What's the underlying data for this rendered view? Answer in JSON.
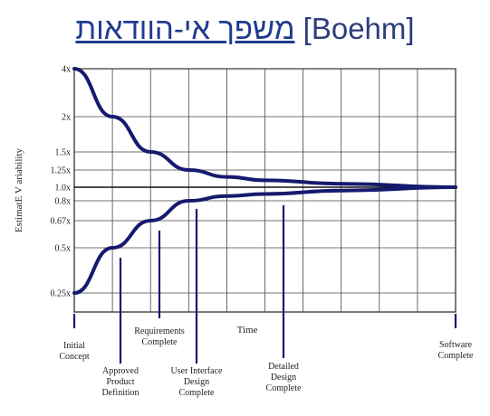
{
  "header": {
    "hebrew": "משפך אי-הוודאות",
    "latin": "[Boehm]"
  },
  "chart_data": {
    "type": "line",
    "title": "משפך אי-הוודאות [Boehm]",
    "xlabel": "Time",
    "ylabel": "EstimatE V ariability",
    "y_ticks": [
      {
        "label": "4x",
        "value": 4.0
      },
      {
        "label": "2x",
        "value": 2.0
      },
      {
        "label": "1.5x",
        "value": 1.5
      },
      {
        "label": "1.25x",
        "value": 1.25
      },
      {
        "label": "1.0x",
        "value": 1.0
      },
      {
        "label": "0.8x",
        "value": 0.8
      },
      {
        "label": "0.67x",
        "value": 0.67
      },
      {
        "label": "0.5x",
        "value": 0.5
      },
      {
        "label": "0.25x",
        "value": 0.25
      }
    ],
    "grid": true,
    "series": [
      {
        "values": [
          [
            0,
            4.0
          ],
          [
            1,
            2.0
          ],
          [
            2,
            1.5
          ],
          [
            3,
            1.25
          ],
          [
            4,
            1.15
          ],
          [
            5,
            1.1
          ],
          [
            7,
            1.05
          ],
          [
            10,
            1.0
          ]
        ]
      },
      {
        "values": [
          [
            0,
            0.25
          ],
          [
            1,
            0.5
          ],
          [
            2,
            0.67
          ],
          [
            3,
            0.8
          ],
          [
            4,
            0.87
          ],
          [
            5,
            0.9
          ],
          [
            7,
            0.95
          ],
          [
            10,
            1.0
          ]
        ]
      }
    ],
    "annotations": [
      {
        "lines": [
          "Initial",
          "Concept"
        ],
        "x": 0
      },
      {
        "lines": [
          "Approved",
          "Product",
          "Definition"
        ],
        "x": 1
      },
      {
        "lines": [
          "Requirements",
          "Complete"
        ],
        "x": 2
      },
      {
        "lines": [
          "User Interface",
          "Design",
          "Complete"
        ],
        "x": 3
      },
      {
        "lines": [
          "Detailed",
          "Design",
          "Complete"
        ],
        "x": 5
      },
      {
        "lines": [
          "Software",
          "Complete"
        ],
        "x": 10
      }
    ]
  }
}
